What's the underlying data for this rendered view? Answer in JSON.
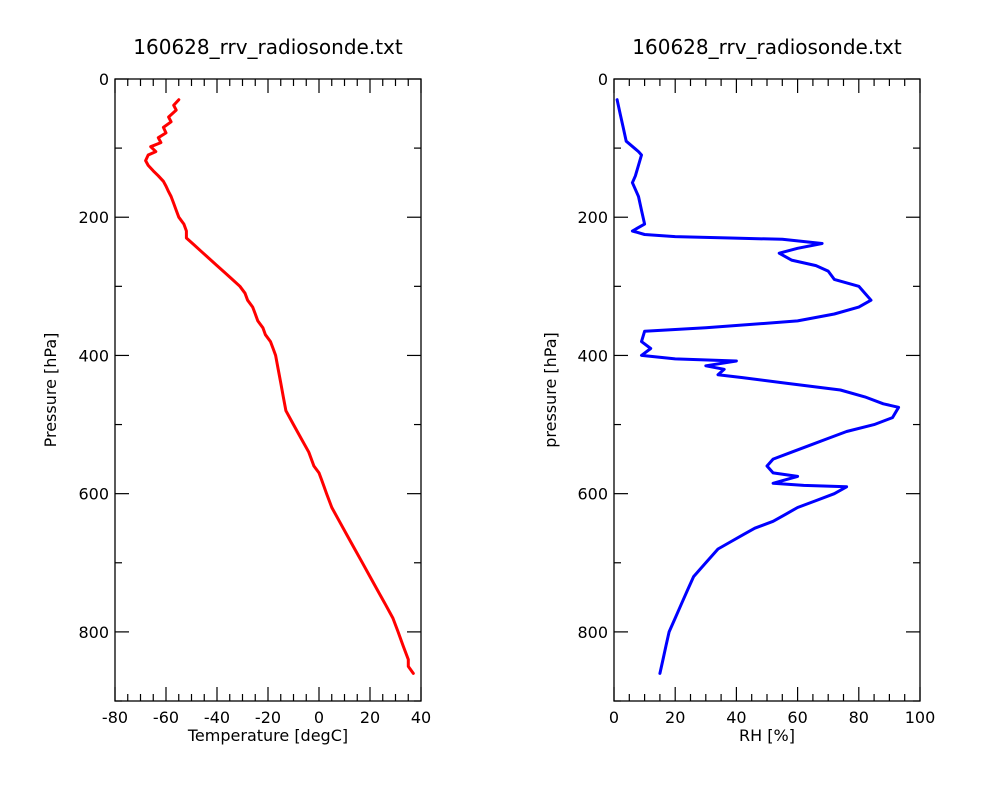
{
  "chart_data": [
    {
      "type": "line",
      "title": "160628_rrv_radiosonde.txt",
      "xlabel": "Temperature [degC]",
      "ylabel": "Pressure [hPa]",
      "xlim": [
        -80,
        40
      ],
      "ylim": [
        900,
        0
      ],
      "y_inverted": true,
      "xticks": [
        -80,
        -60,
        -40,
        -20,
        0,
        20,
        40
      ],
      "xtick_labels": [
        "-80",
        "-60",
        "-40",
        "-20",
        "0",
        "20",
        "40"
      ],
      "yticks": [
        0,
        200,
        400,
        600,
        800
      ],
      "ytick_labels": [
        "0",
        "200",
        "400",
        "600",
        "800"
      ],
      "grid": false,
      "series": [
        {
          "color": "#ff0000",
          "points": [
            [
              -55,
              30
            ],
            [
              -57,
              38
            ],
            [
              -56,
              45
            ],
            [
              -59,
              55
            ],
            [
              -58,
              62
            ],
            [
              -61,
              70
            ],
            [
              -60,
              78
            ],
            [
              -63,
              85
            ],
            [
              -62,
              92
            ],
            [
              -66,
              98
            ],
            [
              -64,
              105
            ],
            [
              -67,
              110
            ],
            [
              -68,
              118
            ],
            [
              -67,
              125
            ],
            [
              -65,
              133
            ],
            [
              -63,
              140
            ],
            [
              -61,
              148
            ],
            [
              -60,
              155
            ],
            [
              -59,
              163
            ],
            [
              -58,
              170
            ],
            [
              -57,
              180
            ],
            [
              -56,
              190
            ],
            [
              -55,
              200
            ],
            [
              -53,
              210
            ],
            [
              -52,
              220
            ],
            [
              -52,
              230
            ],
            [
              -49,
              240
            ],
            [
              -46,
              250
            ],
            [
              -43,
              260
            ],
            [
              -40,
              270
            ],
            [
              -37,
              280
            ],
            [
              -34,
              290
            ],
            [
              -31,
              300
            ],
            [
              -29,
              310
            ],
            [
              -28,
              320
            ],
            [
              -26,
              330
            ],
            [
              -25,
              340
            ],
            [
              -24,
              350
            ],
            [
              -22,
              360
            ],
            [
              -21,
              370
            ],
            [
              -19,
              380
            ],
            [
              -18,
              390
            ],
            [
              -17,
              400
            ],
            [
              -16,
              420
            ],
            [
              -15,
              440
            ],
            [
              -14,
              460
            ],
            [
              -13,
              480
            ],
            [
              -10,
              500
            ],
            [
              -7,
              520
            ],
            [
              -4,
              540
            ],
            [
              -2,
              560
            ],
            [
              0,
              570
            ],
            [
              1,
              580
            ],
            [
              2,
              590
            ],
            [
              3,
              600
            ],
            [
              5,
              620
            ],
            [
              8,
              640
            ],
            [
              11,
              660
            ],
            [
              14,
              680
            ],
            [
              17,
              700
            ],
            [
              20,
              720
            ],
            [
              23,
              740
            ],
            [
              26,
              760
            ],
            [
              29,
              780
            ],
            [
              31,
              800
            ],
            [
              33,
              820
            ],
            [
              35,
              840
            ],
            [
              35,
              850
            ],
            [
              37,
              860
            ]
          ]
        }
      ]
    },
    {
      "type": "line",
      "title": "160628_rrv_radiosonde.txt",
      "xlabel": "RH [%]",
      "ylabel": "pressure [hPa]",
      "xlim": [
        0,
        100
      ],
      "ylim": [
        900,
        0
      ],
      "y_inverted": true,
      "xticks": [
        0,
        20,
        40,
        60,
        80,
        100
      ],
      "xtick_labels": [
        "0",
        "20",
        "40",
        "60",
        "80",
        "100"
      ],
      "yticks": [
        0,
        200,
        400,
        600,
        800
      ],
      "ytick_labels": [
        "0",
        "200",
        "400",
        "600",
        "800"
      ],
      "grid": false,
      "series": [
        {
          "color": "#0000ff",
          "points": [
            [
              1,
              30
            ],
            [
              2,
              50
            ],
            [
              3,
              70
            ],
            [
              4,
              90
            ],
            [
              8,
              105
            ],
            [
              9,
              110
            ],
            [
              7,
              140
            ],
            [
              6,
              150
            ],
            [
              8,
              170
            ],
            [
              9,
              190
            ],
            [
              10,
              210
            ],
            [
              6,
              220
            ],
            [
              10,
              225
            ],
            [
              20,
              228
            ],
            [
              38,
              230
            ],
            [
              55,
              232
            ],
            [
              68,
              238
            ],
            [
              60,
              245
            ],
            [
              54,
              252
            ],
            [
              58,
              262
            ],
            [
              66,
              270
            ],
            [
              70,
              278
            ],
            [
              72,
              290
            ],
            [
              80,
              300
            ],
            [
              82,
              310
            ],
            [
              84,
              320
            ],
            [
              80,
              330
            ],
            [
              72,
              340
            ],
            [
              60,
              350
            ],
            [
              30,
              360
            ],
            [
              10,
              365
            ],
            [
              9,
              380
            ],
            [
              12,
              390
            ],
            [
              9,
              400
            ],
            [
              20,
              405
            ],
            [
              40,
              408
            ],
            [
              30,
              415
            ],
            [
              36,
              420
            ],
            [
              34,
              428
            ],
            [
              42,
              432
            ],
            [
              56,
              440
            ],
            [
              74,
              450
            ],
            [
              82,
              460
            ],
            [
              88,
              470
            ],
            [
              93,
              475
            ],
            [
              91,
              490
            ],
            [
              85,
              500
            ],
            [
              76,
              510
            ],
            [
              70,
              520
            ],
            [
              64,
              530
            ],
            [
              58,
              540
            ],
            [
              52,
              550
            ],
            [
              50,
              560
            ],
            [
              52,
              570
            ],
            [
              60,
              575
            ],
            [
              56,
              580
            ],
            [
              52,
              585
            ],
            [
              62,
              588
            ],
            [
              76,
              590
            ],
            [
              72,
              600
            ],
            [
              66,
              610
            ],
            [
              60,
              620
            ],
            [
              56,
              630
            ],
            [
              52,
              640
            ],
            [
              46,
              650
            ],
            [
              42,
              660
            ],
            [
              38,
              670
            ],
            [
              34,
              680
            ],
            [
              30,
              700
            ],
            [
              26,
              720
            ],
            [
              24,
              740
            ],
            [
              22,
              760
            ],
            [
              20,
              780
            ],
            [
              18,
              800
            ],
            [
              17,
              820
            ],
            [
              16,
              840
            ],
            [
              15,
              860
            ]
          ]
        }
      ]
    }
  ]
}
